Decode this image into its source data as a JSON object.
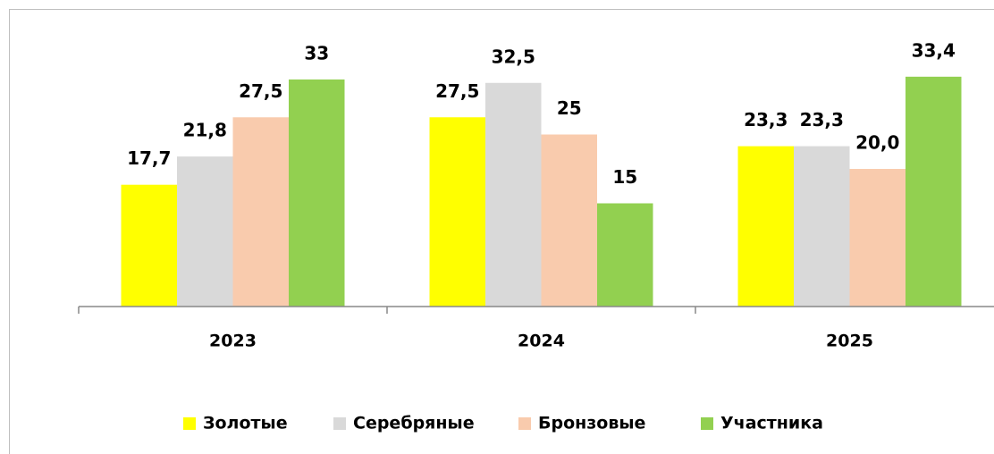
{
  "chart_data": {
    "type": "bar",
    "categories": [
      "2023",
      "2024",
      "2025"
    ],
    "series": [
      {
        "name": "Золотые",
        "color": "#ffff00",
        "values": [
          17.7,
          27.5,
          23.3
        ],
        "value_labels": [
          "17,7",
          "27,5",
          "23,3"
        ]
      },
      {
        "name": "Серебряные",
        "color": "#d9d9d9",
        "values": [
          21.8,
          32.5,
          23.3
        ],
        "value_labels": [
          "21,8",
          "32,5",
          "23,3"
        ]
      },
      {
        "name": "Бронзовые",
        "color": "#f9cbad",
        "values": [
          27.5,
          25,
          20.0
        ],
        "value_labels": [
          "27,5",
          "25",
          "20,0"
        ]
      },
      {
        "name": "Участника",
        "color": "#92d050",
        "values": [
          33,
          15,
          33.4
        ],
        "value_labels": [
          "33",
          "15",
          "33,4"
        ]
      }
    ],
    "ylim": [
      0,
      40
    ],
    "legend": "bottom"
  }
}
